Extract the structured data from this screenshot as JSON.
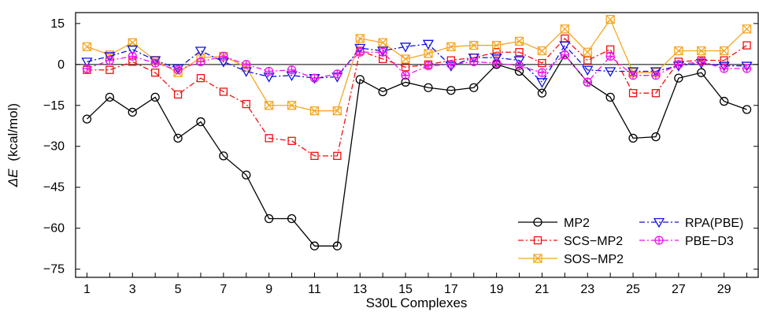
{
  "chart_data": {
    "type": "line",
    "xlabel": "S30L Complexes",
    "ylabel_symbol": "ΔE",
    "ylabel_unit": "(kcal/mol)",
    "xlim": [
      0.5,
      30.5
    ],
    "ylim": [
      -78,
      19
    ],
    "x_ticks": [
      1,
      3,
      5,
      7,
      9,
      11,
      13,
      15,
      17,
      19,
      21,
      23,
      25,
      27,
      29
    ],
    "y_ticks": [
      15,
      0,
      -15,
      -30,
      -45,
      -60,
      -75
    ],
    "y_tick_labels": [
      "15",
      "0",
      "−15",
      "−30",
      "−45",
      "−60",
      "−75"
    ],
    "zero_line": true,
    "grid": false,
    "legend_position": "bottom-right",
    "x": [
      1,
      2,
      3,
      4,
      5,
      6,
      7,
      8,
      9,
      10,
      11,
      12,
      13,
      14,
      15,
      16,
      17,
      18,
      19,
      20,
      21,
      22,
      23,
      24,
      25,
      26,
      27,
      28,
      29,
      30
    ],
    "series": [
      {
        "name": "MP2",
        "color": "#000000",
        "dash": "solid",
        "marker": "circle",
        "values": [
          -20,
          -12,
          -17.5,
          -12,
          -27,
          -21,
          -33.5,
          -40.5,
          -56.5,
          -56.5,
          -66.5,
          -66.5,
          -5.5,
          -10,
          -6.5,
          -8.5,
          -9.5,
          -8.5,
          0,
          -2.5,
          -10.5,
          3.5,
          -6.5,
          -12,
          -27,
          -26.5,
          -5,
          -3,
          -13.5,
          -16.5
        ]
      },
      {
        "name": "SCS−MP2",
        "color": "#ee1111",
        "dash": "dashdot",
        "marker": "square",
        "values": [
          -2,
          -2,
          1,
          -3,
          -11,
          -5,
          -10,
          -14.5,
          -27,
          -28,
          -33.5,
          -33.5,
          5,
          2,
          -1,
          0,
          1.5,
          2.5,
          4.5,
          4.5,
          0.5,
          9.5,
          1.5,
          5.5,
          -10.5,
          -10.5,
          1,
          1.5,
          1.5,
          7
        ]
      },
      {
        "name": "SOS−MP2",
        "color": "#f5a623",
        "dash": "solid",
        "marker": "squarex",
        "values": [
          6.5,
          3.5,
          8,
          1.5,
          -3,
          2.5,
          3,
          -1,
          -15,
          -15,
          -17,
          -17,
          9.5,
          8,
          2,
          4,
          6.5,
          7,
          7,
          8.5,
          5,
          13,
          4.5,
          16.5,
          -3,
          -3,
          5,
          5,
          5,
          13
        ]
      },
      {
        "name": "RPA(PBE)",
        "color": "#1111dd",
        "dash": "dashdot",
        "marker": "triangle-down",
        "values": [
          1,
          3,
          5.5,
          1.5,
          -1.5,
          5,
          1,
          -2.5,
          -4.5,
          -4,
          -5,
          -4.5,
          6,
          5,
          6.5,
          7.5,
          -0.5,
          2.5,
          2.5,
          1.5,
          -6.5,
          7,
          -2,
          -2.5,
          -2.5,
          -2.5,
          -0.5,
          0.5,
          -0.5,
          -0.5
        ]
      },
      {
        "name": "PBE−D3",
        "color": "#ee11ee",
        "dash": "dashdot",
        "marker": "circleplus",
        "values": [
          -1.5,
          1.5,
          3,
          0.5,
          -2,
          1,
          3,
          0,
          -2.5,
          -2,
          -5,
          -3.5,
          4.5,
          4.5,
          -4,
          -0.5,
          0,
          1,
          0.5,
          -0.5,
          -3,
          3.5,
          -6.5,
          3,
          -4,
          -4,
          0,
          1,
          -1.5,
          -1.5
        ]
      }
    ]
  }
}
